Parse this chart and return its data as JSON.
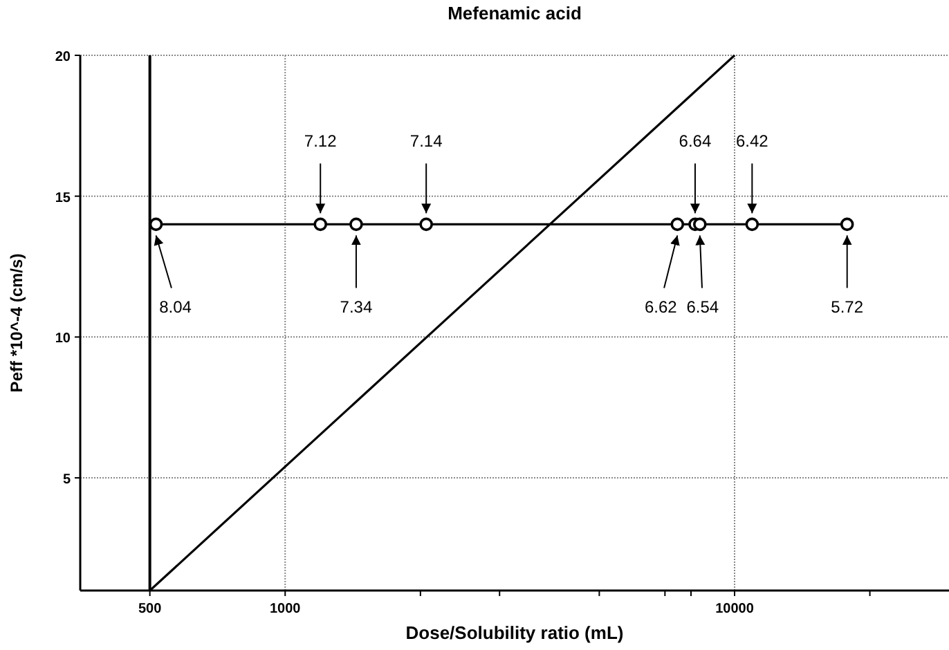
{
  "chart_data": {
    "type": "line",
    "title": "Mefenamic acid",
    "xlabel": "Dose/Solubility ratio (mL)",
    "ylabel": "Peff *10^-4 (cm/s)",
    "log": "x",
    "grid": true,
    "xlim": [
      350,
      30000
    ],
    "ylim": [
      1,
      20
    ],
    "xticks": [
      500,
      1000,
      {
        "value": 2000,
        "label": null
      },
      {
        "value": 3000,
        "label": null
      },
      {
        "value": 5000,
        "label": null
      },
      {
        "value": 7000,
        "label": null
      },
      {
        "value": 8000,
        "label": null
      },
      10000,
      {
        "value": 20000,
        "label": null
      }
    ],
    "yticks": [
      5,
      10,
      15,
      20
    ],
    "series": [
      {
        "color": "#000000",
        "marker": "circle",
        "x": [
          516,
          1198,
          1439,
          2060,
          7460,
          8170,
          8370,
          10940,
          17800
        ],
        "values": [
          14,
          14,
          14,
          14,
          14,
          14,
          14,
          14,
          14
        ]
      },
      {
        "color": "#000000",
        "marker": "none",
        "x": [
          500,
          10000
        ],
        "values": [
          1,
          20
        ]
      }
    ],
    "ref_lines": [
      {
        "axis": "x",
        "value": 500,
        "color": "#000000"
      }
    ],
    "annotations": [
      {
        "text": "8.04",
        "x": 516,
        "y": 14
      },
      {
        "text": "7.12",
        "x": 1198,
        "y": 14
      },
      {
        "text": "7.34",
        "x": 1439,
        "y": 14
      },
      {
        "text": "7.14",
        "x": 2060,
        "y": 14
      },
      {
        "text": "6.62",
        "x": 7460,
        "y": 14
      },
      {
        "text": "6.64",
        "x": 8170,
        "y": 14
      },
      {
        "text": "6.54",
        "x": 8370,
        "y": 14
      },
      {
        "text": "6.42",
        "x": 10940,
        "y": 14
      },
      {
        "text": "5.72",
        "x": 17800,
        "y": 14
      }
    ]
  }
}
